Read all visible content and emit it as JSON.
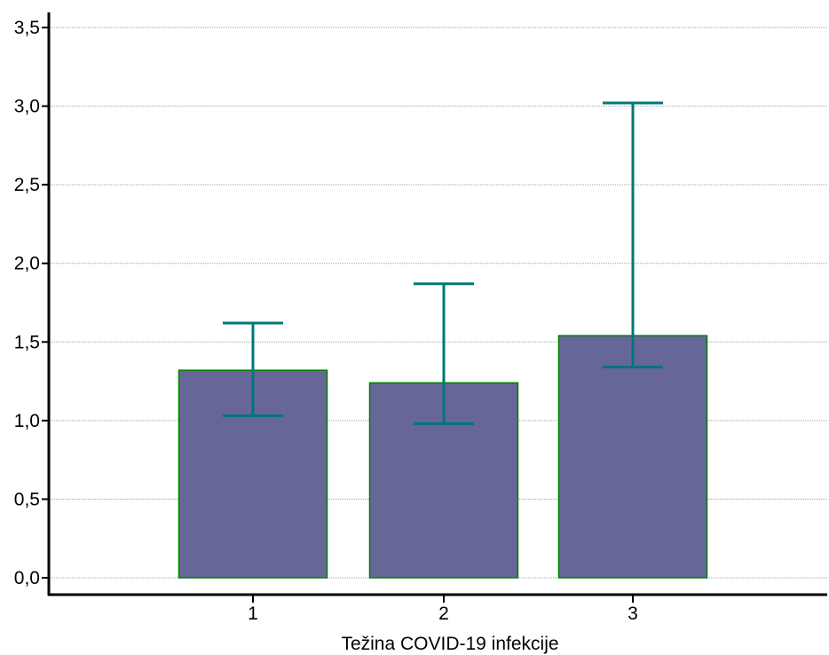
{
  "chart_data": {
    "type": "bar",
    "title": "",
    "xlabel": "Težina COVID-19 infekcije",
    "ylabel": "",
    "categories": [
      "1",
      "2",
      "3"
    ],
    "values": [
      1.32,
      1.24,
      1.54
    ],
    "error_bars": [
      {
        "low": 1.03,
        "high": 1.62
      },
      {
        "low": 0.98,
        "high": 1.87
      },
      {
        "low": 1.34,
        "high": 3.02
      }
    ],
    "ylim": [
      0,
      3.5
    ],
    "yticks": [
      0,
      0.5,
      1.0,
      1.5,
      2.0,
      2.5,
      3.0,
      3.5
    ],
    "ytick_labels": [
      "0,0",
      "0,5",
      "1,0",
      "1,5",
      "2,0",
      "2,5",
      "3,0",
      "3,5"
    ],
    "grid": "horizontal dotted",
    "colors": {
      "bar_fill": "#666699",
      "bar_stroke": "#008000",
      "error_bar": "#007777",
      "grid": "#a0a0a0",
      "axis": "#000000"
    }
  }
}
